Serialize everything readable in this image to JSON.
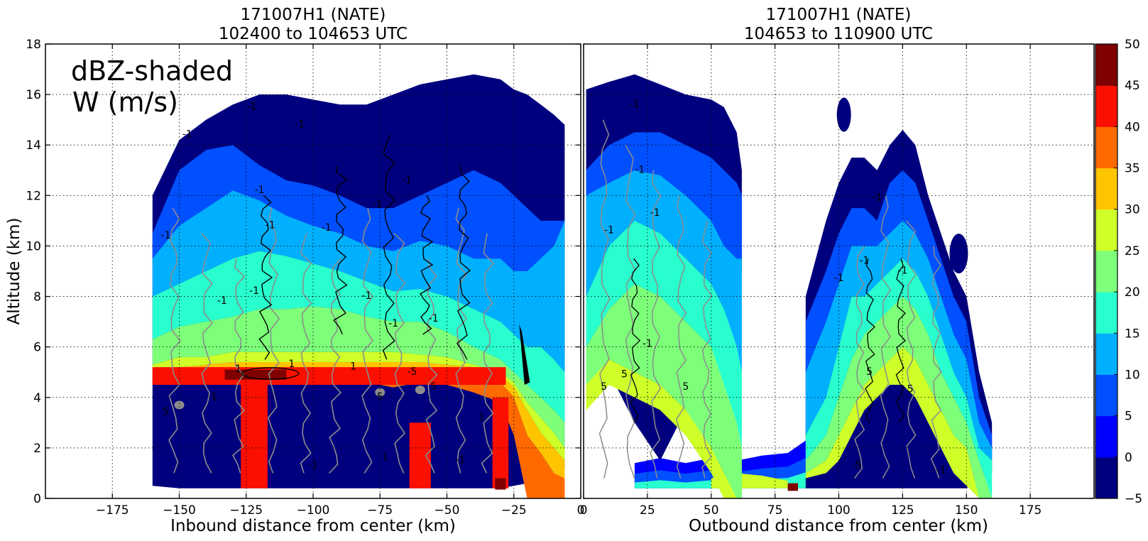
{
  "figure": {
    "left_panel": {
      "title_line1": "171007H1 (NATE)",
      "title_line2": "102400 to 104653 UTC"
    },
    "right_panel": {
      "title_line1": "171007H1 (NATE)",
      "title_line2": "104653 to 110900 UTC"
    },
    "annotation_line1": "dBZ-shaded",
    "annotation_line2": "W (m/s)"
  },
  "chart_data": [
    {
      "type": "heatmap",
      "panel": "inbound",
      "title": "171007H1 (NATE)\n102400 to 104653 UTC",
      "xlabel": "Inbound distance from center (km)",
      "ylabel": "Altitude (km)",
      "xlim": [
        -200,
        0
      ],
      "ylim": [
        0,
        18
      ],
      "x_ticks": [
        -175,
        -150,
        -125,
        -100,
        -75,
        -50,
        -25,
        0
      ],
      "x_tick_labels": [
        "−175",
        "−150",
        "−125",
        "−100",
        "−75",
        "−50",
        "−25",
        "0"
      ],
      "y_ticks": [
        0,
        2,
        4,
        6,
        8,
        10,
        12,
        14,
        16,
        18
      ],
      "y_tick_labels": [
        "0",
        "2",
        "4",
        "6",
        "8",
        "10",
        "12",
        "14",
        "16",
        "18"
      ],
      "grid": true,
      "shaded_field": "reflectivity (dBZ)",
      "data_extent_x": [
        -160,
        -5
      ],
      "profile_x": [
        -160,
        -150,
        -140,
        -130,
        -120,
        -110,
        -100,
        -90,
        -80,
        -70,
        -60,
        -50,
        -40,
        -30,
        -25,
        -20,
        -15,
        -10,
        -6
      ],
      "profile_top_km": [
        12.0,
        14.2,
        15.0,
        15.6,
        16.0,
        16.0,
        15.8,
        15.6,
        15.6,
        16.0,
        16.4,
        16.6,
        16.8,
        16.6,
        16.2,
        16.0,
        15.6,
        15.2,
        14.8
      ],
      "layers_dbz": [
        -5,
        0,
        5,
        10,
        15,
        20,
        25,
        30,
        35
      ],
      "layer_base_km": [
        [
          0.5,
          0.4,
          0.4,
          0.4,
          0.4,
          0.4,
          0.4,
          0.4,
          0.4,
          0.4,
          0.4,
          0.4,
          0.4,
          0.4,
          0.5,
          0.6,
          0.8,
          1.0,
          1.2
        ],
        [
          10.5,
          13.0,
          13.8,
          14.0,
          13.2,
          12.6,
          12.4,
          12.0,
          11.5,
          11.5,
          12.0,
          12.5,
          13.0,
          12.5,
          12.0,
          11.5,
          11.0,
          11.0,
          11.0
        ],
        [
          9.5,
          10.8,
          11.5,
          12.2,
          11.8,
          11.2,
          10.8,
          10.5,
          10.0,
          9.8,
          10.2,
          10.0,
          9.5,
          9.5,
          9.0,
          9.0,
          9.5,
          10.0,
          11.0
        ],
        [
          8.0,
          8.5,
          9.0,
          9.5,
          9.8,
          9.6,
          9.3,
          9.0,
          8.6,
          8.2,
          8.3,
          8.0,
          7.5,
          7.0,
          6.5,
          6.0,
          6.0,
          5.5,
          5.0
        ],
        [
          6.3,
          6.8,
          7.0,
          7.2,
          7.5,
          7.5,
          7.6,
          7.5,
          7.2,
          7.0,
          7.0,
          6.6,
          6.0,
          5.5,
          5.0,
          4.5,
          4.0,
          3.5,
          3.0
        ],
        [
          5.3,
          5.6,
          5.6,
          5.8,
          5.8,
          5.8,
          5.8,
          5.8,
          5.8,
          5.8,
          5.7,
          5.6,
          5.3,
          5.0,
          4.6,
          3.8,
          3.2,
          2.6,
          2.0
        ],
        [
          5.0,
          5.2,
          5.3,
          5.4,
          5.4,
          5.4,
          5.4,
          5.4,
          5.4,
          5.4,
          5.4,
          5.3,
          5.2,
          4.9,
          4.4,
          3.5,
          2.6,
          2.0,
          1.5
        ],
        [
          4.8,
          5.0,
          5.0,
          5.0,
          5.0,
          5.0,
          5.0,
          5.0,
          5.0,
          5.0,
          5.0,
          5.0,
          4.9,
          4.6,
          4.0,
          2.5,
          1.8,
          1.0,
          0.8
        ],
        [
          4.6,
          4.8,
          4.9,
          5.0,
          5.0,
          4.9,
          4.8,
          4.7,
          4.6,
          4.4,
          4.6,
          4.5,
          4.2,
          3.8,
          2.5,
          0.0,
          0.0,
          0.0,
          0.0
        ]
      ],
      "bright_band_km": [
        4.5,
        5.2
      ],
      "bright_band_x": [
        -160,
        -28
      ],
      "bright_band_dbz": 40,
      "core_columns": [
        {
          "x_center": -122,
          "half_width": 5,
          "top_km": 4.6,
          "dbz": 40
        },
        {
          "x_center": -60,
          "half_width": 4,
          "top_km": 3.0,
          "dbz": 40
        },
        {
          "x_center": -30,
          "half_width": 3,
          "top_km": 4.0,
          "dbz": 40
        }
      ],
      "surface_max_x": -30,
      "surface_max_dbz": 45,
      "contour_labels": [
        "-1",
        "1",
        "-5",
        "5"
      ]
    },
    {
      "type": "heatmap",
      "panel": "outbound",
      "title": "171007H1 (NATE)\n104653 to 110900 UTC",
      "xlabel": "Outbound distance from center (km)",
      "xlim": [
        0,
        200
      ],
      "ylim": [
        0,
        18
      ],
      "x_ticks": [
        0,
        25,
        50,
        75,
        100,
        125,
        150,
        175
      ],
      "x_tick_labels": [
        "0",
        "25",
        "50",
        "75",
        "100",
        "125",
        "150",
        "175"
      ],
      "grid": true,
      "shaded_field": "reflectivity (dBZ)",
      "left_echo": {
        "profile_x": [
          1,
          10,
          20,
          30,
          40,
          50,
          55,
          60,
          62
        ],
        "profile_top_km": [
          16.2,
          16.5,
          16.8,
          16.4,
          16.0,
          15.8,
          15.5,
          14.5,
          13.0
        ],
        "layers_dbz": [
          -5,
          0,
          5,
          10,
          15,
          20,
          25
        ],
        "layer_base_km": [
          [
            6.0,
            5.0,
            3.0,
            1.5,
            3.5,
            5.5,
            7.0,
            8.0,
            9.0
          ],
          [
            13.0,
            14.0,
            14.5,
            14.5,
            14.0,
            13.5,
            13.0,
            12.5,
            12.0
          ],
          [
            12.0,
            12.5,
            13.0,
            12.8,
            12.0,
            11.0,
            10.0,
            9.5,
            9.5
          ],
          [
            8.0,
            10.0,
            11.0,
            10.5,
            9.5,
            8.5,
            7.5,
            6.0,
            5.0
          ],
          [
            6.0,
            7.5,
            8.5,
            8.0,
            7.0,
            6.0,
            4.5,
            3.0,
            2.0
          ],
          [
            4.5,
            5.5,
            5.0,
            4.5,
            3.5,
            2.0,
            1.0,
            0.0,
            0.0
          ],
          [
            3.5,
            4.5,
            4.0,
            3.5,
            2.5,
            1.0,
            0.0,
            0.0,
            0.0
          ]
        ]
      },
      "right_echo": {
        "profile_x": [
          87,
          95,
          100,
          105,
          110,
          115,
          120,
          125,
          130,
          135,
          140,
          145,
          150,
          155,
          160
        ],
        "profile_top_km": [
          8.0,
          11.0,
          12.5,
          13.5,
          13.5,
          13.0,
          14.0,
          14.6,
          14.0,
          12.0,
          10.5,
          9.0,
          8.0,
          5.0,
          3.0
        ],
        "layers_dbz": [
          -5,
          0,
          5,
          10,
          15,
          20,
          25
        ],
        "layer_base_km": [
          [
            0.4,
            0.4,
            0.4,
            0.4,
            0.4,
            0.4,
            0.4,
            0.4,
            0.4,
            0.4,
            0.4,
            0.4,
            0.4,
            0.8,
            1.0
          ],
          [
            7.0,
            9.0,
            10.5,
            11.5,
            11.5,
            11.0,
            12.5,
            13.0,
            12.5,
            11.0,
            9.5,
            8.0,
            7.0,
            4.0,
            2.5
          ],
          [
            5.0,
            7.0,
            8.5,
            10.0,
            10.0,
            10.0,
            10.5,
            11.0,
            10.5,
            9.5,
            8.0,
            6.5,
            5.5,
            3.0,
            2.0
          ],
          [
            2.5,
            4.0,
            6.0,
            8.0,
            8.0,
            8.5,
            9.0,
            9.5,
            9.0,
            8.0,
            6.5,
            5.0,
            4.0,
            2.0,
            1.5
          ],
          [
            1.5,
            2.5,
            4.0,
            5.5,
            6.5,
            7.0,
            7.5,
            8.0,
            7.5,
            6.5,
            5.0,
            4.0,
            3.0,
            1.5,
            0.0
          ],
          [
            1.0,
            1.5,
            2.5,
            3.5,
            4.5,
            5.0,
            5.5,
            6.0,
            5.5,
            4.5,
            3.5,
            2.5,
            2.0,
            0.0,
            0.0
          ],
          [
            0.8,
            1.0,
            1.5,
            2.5,
            3.5,
            4.0,
            4.5,
            4.5,
            4.0,
            3.0,
            2.0,
            1.0,
            0.5,
            0.0,
            0.0
          ]
        ]
      },
      "low_level_echo": {
        "x_range": [
          20,
          100
        ],
        "top_km": [
          1.4,
          1.6,
          1.4,
          1.6,
          1.5,
          1.7,
          1.8,
          2.5,
          3.5
        ],
        "max_dbz": 30
      },
      "surface_max_x": 82,
      "surface_max_dbz": 45,
      "contour_labels": [
        "-1",
        "1",
        "-5",
        "5"
      ]
    },
    {
      "type": "colorbar",
      "unit": "dBZ",
      "levels": [
        -5,
        0,
        5,
        10,
        15,
        20,
        25,
        30,
        35,
        40,
        45,
        50
      ],
      "tick_labels": [
        "−5",
        "0",
        "5",
        "10",
        "15",
        "20",
        "25",
        "30",
        "35",
        "40",
        "45",
        "50"
      ],
      "colors": [
        "#00007f",
        "#0000ff",
        "#0050ff",
        "#00b0ff",
        "#29ffce",
        "#7dff7a",
        "#ceff29",
        "#ffc400",
        "#ff6a00",
        "#fa0f00",
        "#7f0000"
      ]
    }
  ]
}
